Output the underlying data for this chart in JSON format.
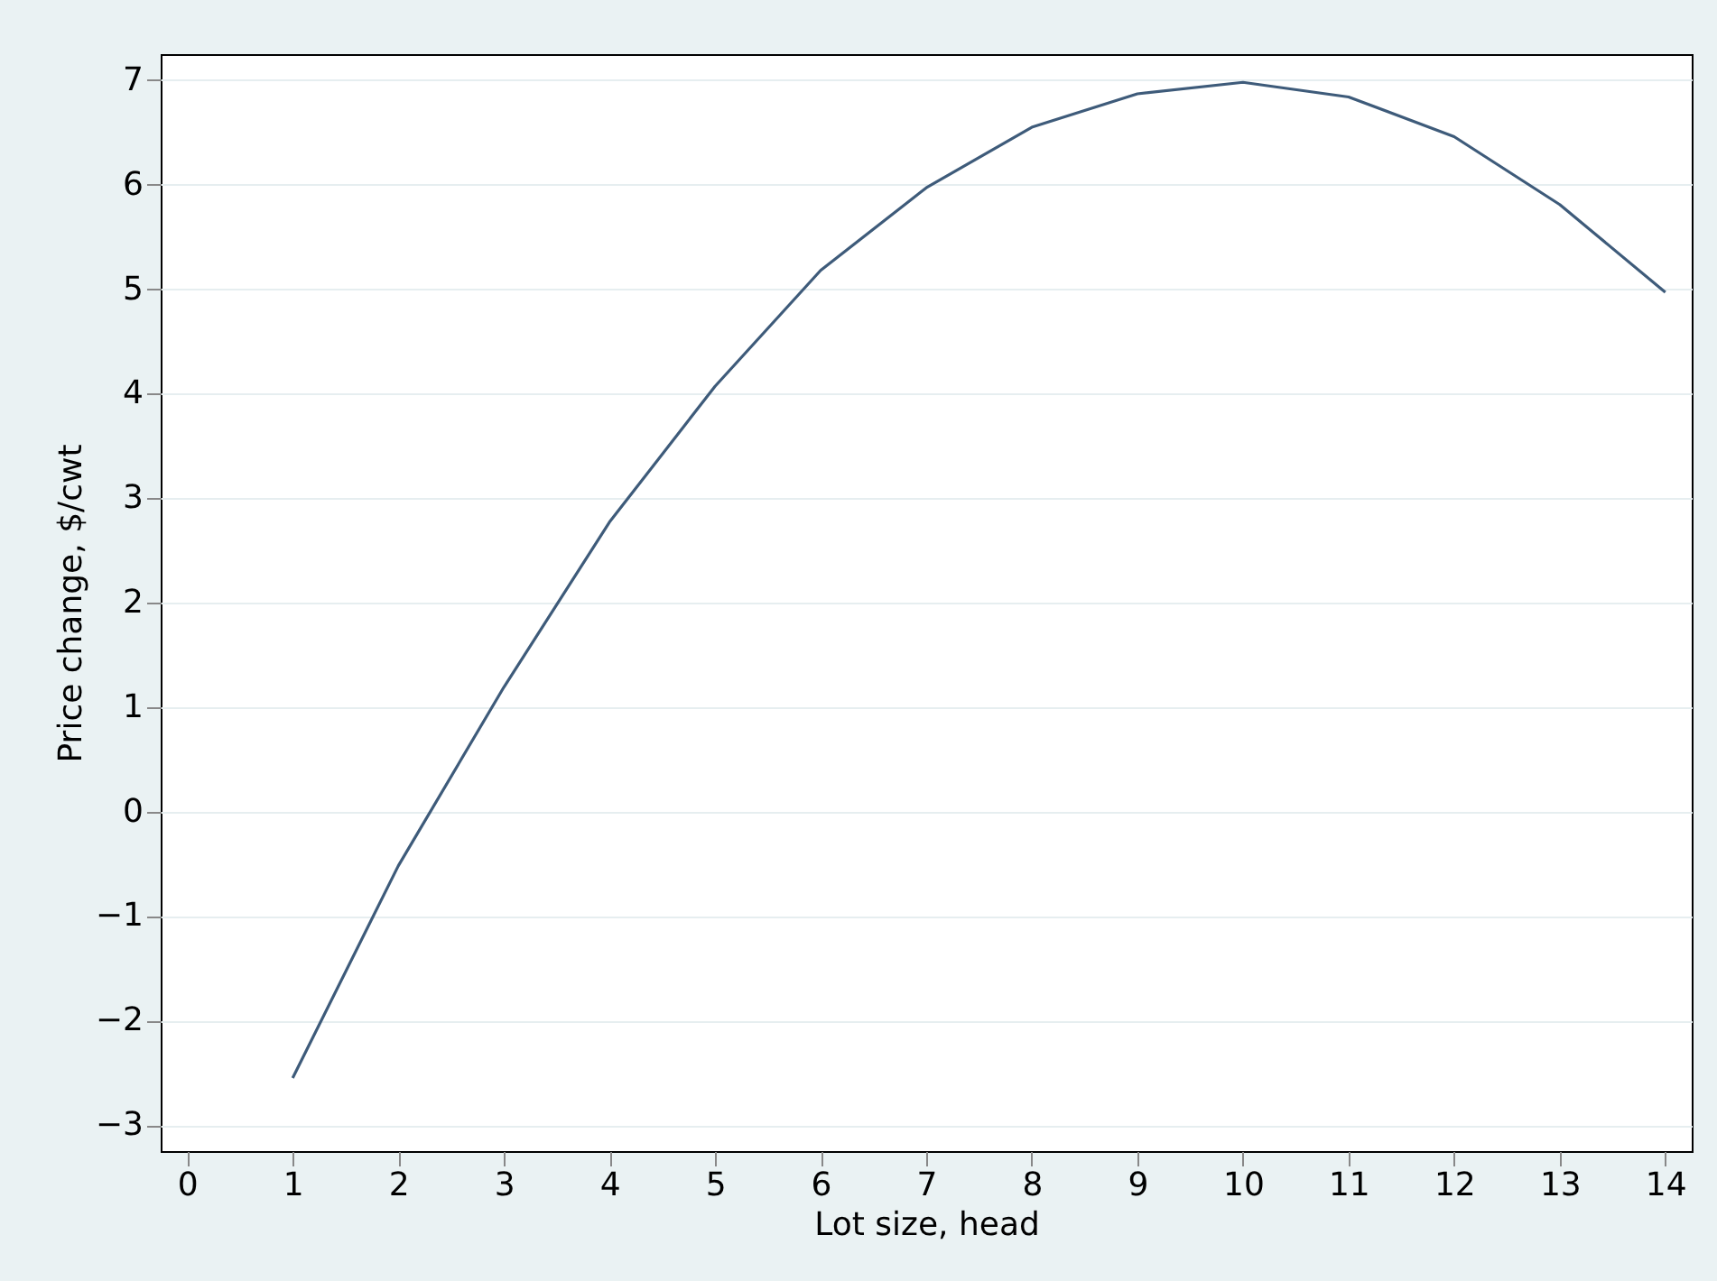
{
  "chart_data": {
    "type": "line",
    "xlabel": "Lot size, head",
    "ylabel": "Price change, $/cwt",
    "x": [
      1,
      2,
      3,
      4,
      5,
      6,
      7,
      8,
      9,
      10,
      11,
      12,
      13,
      14
    ],
    "series": [
      {
        "color": "#3e5b7a",
        "values": [
          -2.55,
          -0.52,
          1.19,
          2.77,
          4.07,
          5.18,
          5.97,
          6.55,
          6.87,
          6.98,
          6.84,
          6.46,
          5.81,
          4.97
        ]
      }
    ],
    "xlim": [
      -0.25,
      14.25
    ],
    "xticks": [
      0,
      1,
      2,
      3,
      4,
      5,
      6,
      7,
      8,
      9,
      10,
      11,
      12,
      13,
      14
    ],
    "ylim": [
      -3.25,
      7.25
    ],
    "yticks": [
      -3,
      -2,
      -1,
      0,
      1,
      2,
      3,
      4,
      5,
      6,
      7
    ],
    "grid": "y",
    "marker": "none",
    "line_style": "solid"
  }
}
